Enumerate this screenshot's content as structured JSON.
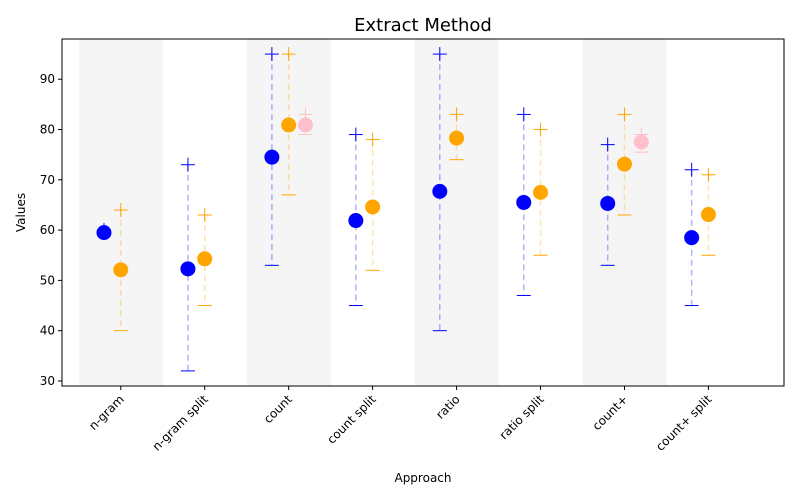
{
  "chart_data": {
    "type": "scatter",
    "title": "Extract Method",
    "xlabel": "Approach",
    "ylabel": "Values",
    "categories": [
      "n-gram",
      "n-gram split",
      "count",
      "count split",
      "ratio",
      "ratio split",
      "count+",
      "count+ split"
    ],
    "ylim": [
      29,
      98
    ],
    "yticks": [
      30,
      40,
      50,
      60,
      70,
      80,
      90
    ],
    "shaded_categories": [
      0,
      2,
      4,
      6
    ],
    "grid": false,
    "series": [
      {
        "color": "#0000ff",
        "offset": -0.2,
        "points": [
          {
            "category": 0,
            "mean": 59.5,
            "min": 59.0,
            "max": 60.0
          },
          {
            "category": 1,
            "mean": 52.3,
            "min": 32,
            "max": 73
          },
          {
            "category": 2,
            "mean": 74.5,
            "min": 53,
            "max": 95
          },
          {
            "category": 3,
            "mean": 61.9,
            "min": 45,
            "max": 79
          },
          {
            "category": 4,
            "mean": 67.7,
            "min": 40,
            "max": 95
          },
          {
            "category": 5,
            "mean": 65.5,
            "min": 47,
            "max": 83
          },
          {
            "category": 6,
            "mean": 65.3,
            "min": 53,
            "max": 77
          },
          {
            "category": 7,
            "mean": 58.5,
            "min": 45,
            "max": 72
          }
        ]
      },
      {
        "color": "#ffa500",
        "offset": 0.0,
        "points": [
          {
            "category": 0,
            "mean": 52.1,
            "min": 40,
            "max": 64
          },
          {
            "category": 1,
            "mean": 54.3,
            "min": 45,
            "max": 63
          },
          {
            "category": 2,
            "mean": 80.9,
            "min": 67,
            "max": 95
          },
          {
            "category": 3,
            "mean": 64.6,
            "min": 52,
            "max": 78
          },
          {
            "category": 4,
            "mean": 78.3,
            "min": 74,
            "max": 83
          },
          {
            "category": 5,
            "mean": 67.5,
            "min": 55,
            "max": 80
          },
          {
            "category": 6,
            "mean": 73.1,
            "min": 63,
            "max": 83
          },
          {
            "category": 7,
            "mean": 63.1,
            "min": 55,
            "max": 71
          }
        ]
      },
      {
        "color": "#ffc0cb",
        "offset": 0.2,
        "points": [
          {
            "category": 2,
            "mean": 80.9,
            "min": 79,
            "max": 83
          },
          {
            "category": 6,
            "mean": 77.5,
            "min": 75.5,
            "max": 79
          }
        ]
      }
    ]
  }
}
